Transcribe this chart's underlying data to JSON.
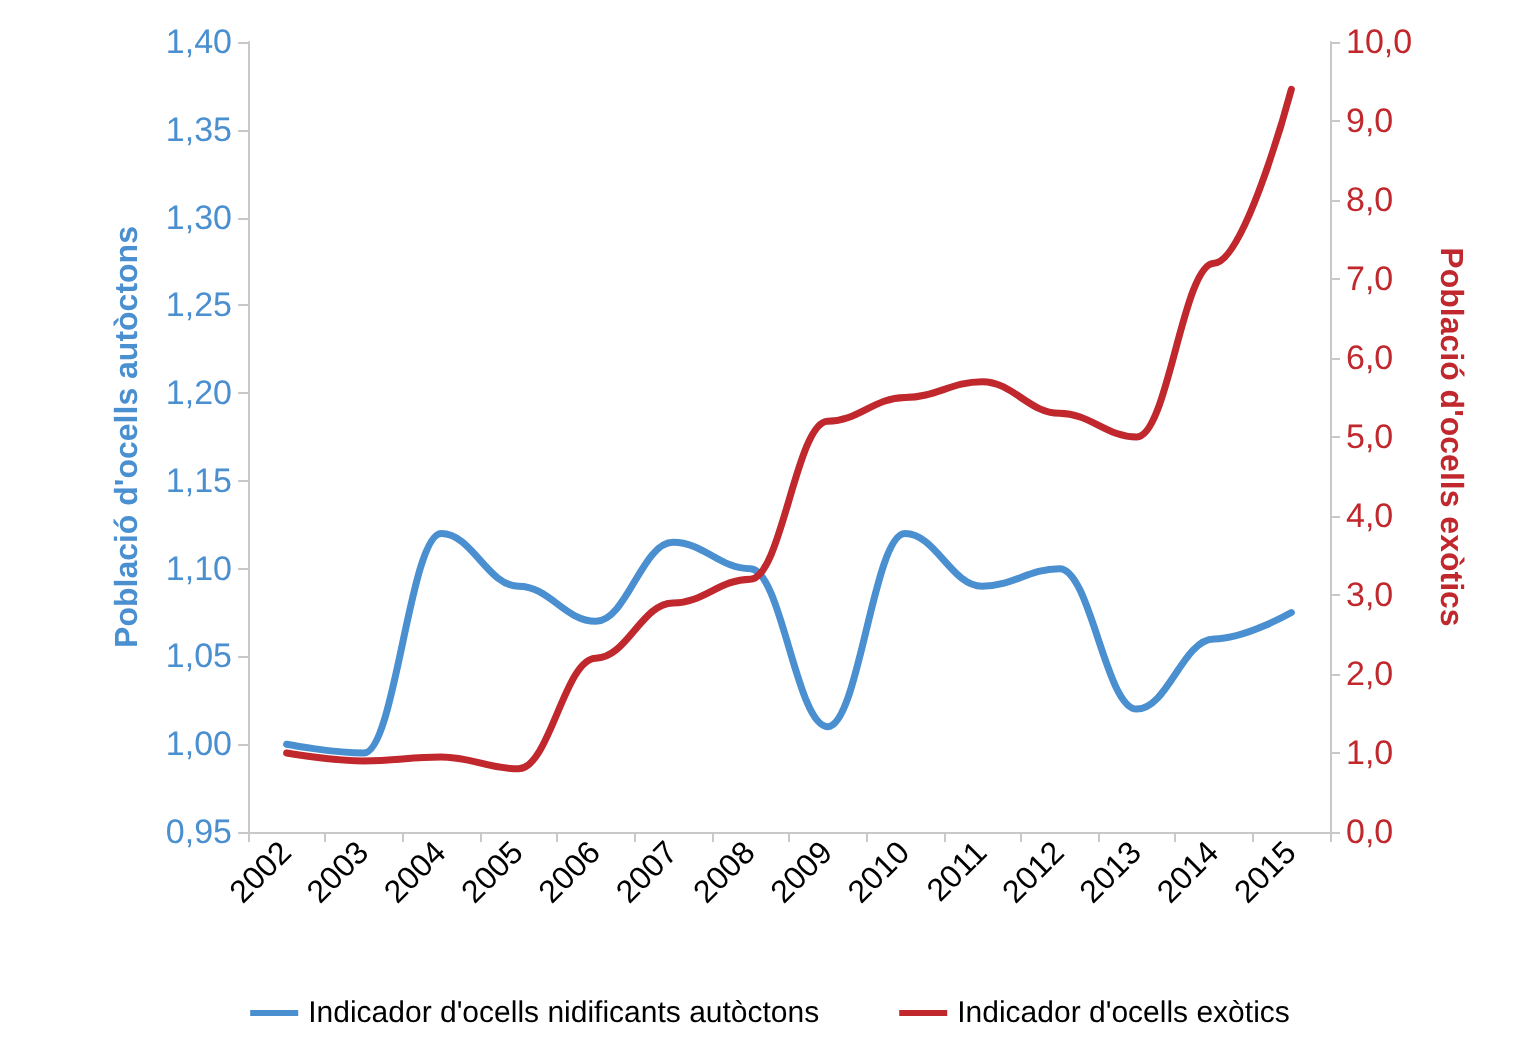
{
  "chart_data": {
    "type": "line",
    "ylabel": "Població d'ocells autòctons",
    "y2label": "Població d'ocells exòtics",
    "categories": [
      "2002",
      "2003",
      "2004",
      "2005",
      "2006",
      "2007",
      "2008",
      "2009",
      "2010",
      "2011",
      "2012",
      "2013",
      "2014",
      "2015"
    ],
    "series": [
      {
        "name": "Indicador d'ocells nidificants autòctons",
        "color": "#4a8fd0",
        "values": [
          1.0,
          0.995,
          1.12,
          1.09,
          1.07,
          1.115,
          1.1,
          1.01,
          1.12,
          1.09,
          1.1,
          1.02,
          1.06,
          1.075
        ]
      },
      {
        "name": "Indicador d'ocells exòtics",
        "color": "#c0282d",
        "axis": "y2",
        "values": [
          1.0,
          0.9,
          0.95,
          0.8,
          2.2,
          2.9,
          3.2,
          5.2,
          5.5,
          5.7,
          5.3,
          5.0,
          7.2,
          9.4
        ]
      }
    ],
    "ylim": [
      0.95,
      1.4
    ],
    "yticks": [
      {
        "value": 0.95,
        "label": "0,95"
      },
      {
        "value": 1.0,
        "label": "1,00"
      },
      {
        "value": 1.05,
        "label": "1,05"
      },
      {
        "value": 1.1,
        "label": "1,10"
      },
      {
        "value": 1.15,
        "label": "1,15"
      },
      {
        "value": 1.2,
        "label": "1,20"
      },
      {
        "value": 1.25,
        "label": "1,25"
      },
      {
        "value": 1.3,
        "label": "1,30"
      },
      {
        "value": 1.35,
        "label": "1,35"
      },
      {
        "value": 1.4,
        "label": "1,40"
      }
    ],
    "y2lim": [
      0,
      10
    ],
    "y2ticks": [
      {
        "value": 0,
        "label": "0,0"
      },
      {
        "value": 1,
        "label": "1,0"
      },
      {
        "value": 2,
        "label": "2,0"
      },
      {
        "value": 3,
        "label": "3,0"
      },
      {
        "value": 4,
        "label": "4,0"
      },
      {
        "value": 5,
        "label": "5,0"
      },
      {
        "value": 6,
        "label": "6,0"
      },
      {
        "value": 7,
        "label": "7,0"
      },
      {
        "value": 8,
        "label": "8,0"
      },
      {
        "value": 9,
        "label": "9,0"
      },
      {
        "value": 10,
        "label": "10,0"
      }
    ],
    "grid": false,
    "legend": "bottom",
    "marker": "none",
    "line_style": "solid"
  }
}
